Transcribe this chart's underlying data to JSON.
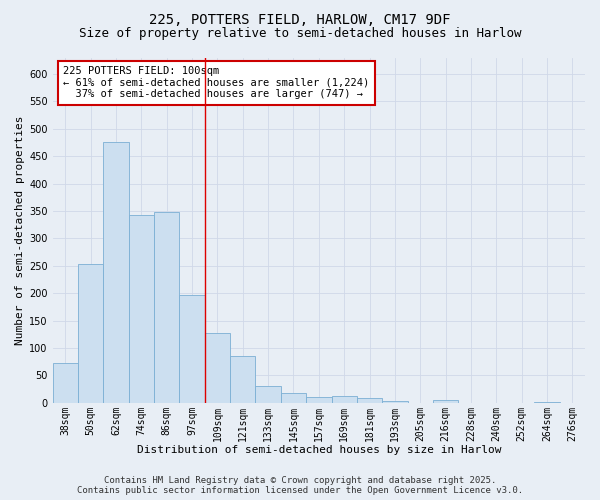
{
  "title1": "225, POTTERS FIELD, HARLOW, CM17 9DF",
  "title2": "Size of property relative to semi-detached houses in Harlow",
  "xlabel": "Distribution of semi-detached houses by size in Harlow",
  "ylabel": "Number of semi-detached properties",
  "categories": [
    "38sqm",
    "50sqm",
    "62sqm",
    "74sqm",
    "86sqm",
    "97sqm",
    "109sqm",
    "121sqm",
    "133sqm",
    "145sqm",
    "157sqm",
    "169sqm",
    "181sqm",
    "193sqm",
    "205sqm",
    "216sqm",
    "228sqm",
    "240sqm",
    "252sqm",
    "264sqm",
    "276sqm"
  ],
  "values": [
    72,
    253,
    475,
    343,
    349,
    197,
    127,
    86,
    30,
    17,
    11,
    13,
    8,
    3,
    0,
    5,
    0,
    0,
    0,
    2,
    0
  ],
  "bar_color": "#ccdff0",
  "bar_edge_color": "#7bafd4",
  "highlight_index": 5,
  "highlight_line_color": "#dd0000",
  "annotation_text": "225 POTTERS FIELD: 100sqm\n← 61% of semi-detached houses are smaller (1,224)\n  37% of semi-detached houses are larger (747) →",
  "annotation_box_color": "#ffffff",
  "annotation_box_edge": "#cc0000",
  "ylim": [
    0,
    630
  ],
  "yticks": [
    0,
    50,
    100,
    150,
    200,
    250,
    300,
    350,
    400,
    450,
    500,
    550,
    600
  ],
  "grid_color": "#d0d8e8",
  "background_color": "#e8eef5",
  "footer": "Contains HM Land Registry data © Crown copyright and database right 2025.\nContains public sector information licensed under the Open Government Licence v3.0.",
  "title_fontsize": 10,
  "subtitle_fontsize": 9,
  "axis_label_fontsize": 8,
  "tick_fontsize": 7,
  "annotation_fontsize": 7.5,
  "footer_fontsize": 6.5
}
